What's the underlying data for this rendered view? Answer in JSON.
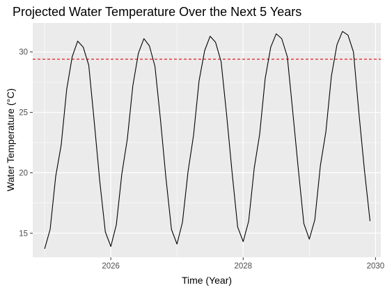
{
  "chart_data": {
    "type": "line",
    "title": "Projected Water Temperature Over the Next 5 Years",
    "xlabel": "Time (Year)",
    "ylabel": "Water Temperature (°C)",
    "xlim": [
      2024.82,
      2030.08
    ],
    "ylim": [
      13.0,
      32.4
    ],
    "x_ticks": [
      2026,
      2028,
      2030
    ],
    "y_ticks": [
      15,
      20,
      25,
      30
    ],
    "grid": true,
    "legend": "none",
    "reference_line": {
      "y": 29.4,
      "style": "dashed",
      "color": "#e41a1c"
    },
    "series": [
      {
        "color": "#000000",
        "x": [
          2025.0,
          2025.083,
          2025.167,
          2025.25,
          2025.333,
          2025.417,
          2025.5,
          2025.583,
          2025.667,
          2025.75,
          2025.833,
          2025.917,
          2026.0,
          2026.083,
          2026.167,
          2026.25,
          2026.333,
          2026.417,
          2026.5,
          2026.583,
          2026.667,
          2026.75,
          2026.833,
          2026.917,
          2027.0,
          2027.083,
          2027.167,
          2027.25,
          2027.333,
          2027.417,
          2027.5,
          2027.583,
          2027.667,
          2027.75,
          2027.833,
          2027.917,
          2028.0,
          2028.083,
          2028.167,
          2028.25,
          2028.333,
          2028.417,
          2028.5,
          2028.583,
          2028.667,
          2028.75,
          2028.833,
          2028.917,
          2029.0,
          2029.083,
          2029.167,
          2029.25,
          2029.333,
          2029.417,
          2029.5,
          2029.583,
          2029.667,
          2029.75,
          2029.833,
          2029.917
        ],
        "values": [
          13.7,
          15.3,
          19.7,
          22.3,
          26.9,
          29.6,
          30.9,
          30.4,
          28.9,
          24.2,
          19.3,
          15.1,
          13.9,
          15.7,
          19.9,
          22.8,
          27.2,
          29.9,
          31.1,
          30.5,
          28.8,
          24.4,
          19.6,
          15.3,
          14.1,
          15.9,
          20.1,
          23.1,
          27.6,
          30.1,
          31.3,
          30.8,
          29.2,
          24.8,
          20.0,
          15.5,
          14.3,
          16.0,
          20.4,
          23.2,
          27.8,
          30.4,
          31.5,
          31.1,
          29.6,
          25.0,
          20.3,
          15.8,
          14.5,
          16.1,
          20.6,
          23.4,
          28.0,
          30.6,
          31.7,
          31.4,
          30.0,
          24.9,
          20.2,
          16.0
        ]
      }
    ]
  }
}
